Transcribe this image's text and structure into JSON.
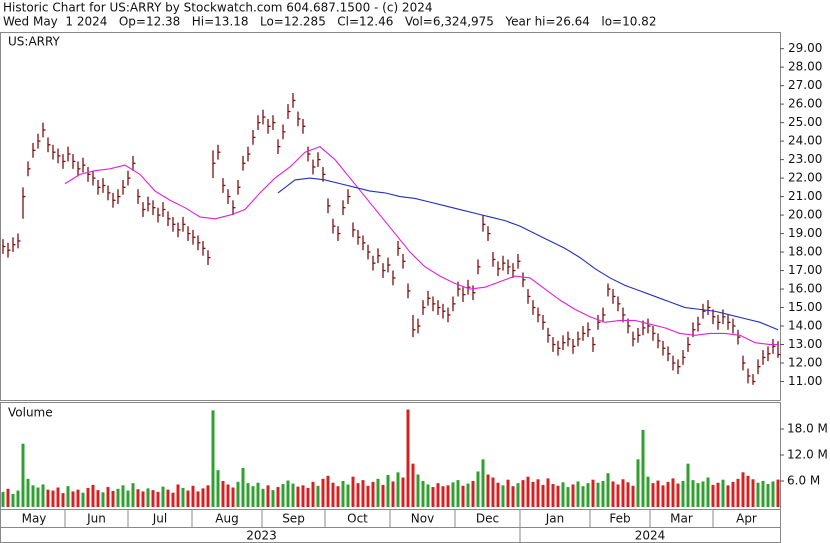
{
  "header": {
    "line1": "Historic Chart for US:ARRY by Stockwatch.com 604.687.1500 - (c) 2024",
    "line2": "Wed May  1 2024   Op=12.38   Hi=13.18   Lo=12.285   Cl=12.46   Vol=6,324,975   Year hi=26.64   lo=10.82"
  },
  "chart_data": [
    {
      "type": "ohlc",
      "label": "US:ARRY",
      "color": "#7a1010",
      "xlim": [
        -0.6,
        155.4
      ],
      "ylim": [
        10,
        29.9
      ],
      "yticks": [
        {
          "value": 11,
          "label": "11.00"
        },
        {
          "value": 12,
          "label": "12.00"
        },
        {
          "value": 13,
          "label": "13.00"
        },
        {
          "value": 14,
          "label": "14.00"
        },
        {
          "value": 15,
          "label": "15.00"
        },
        {
          "value": 16,
          "label": "16.00"
        },
        {
          "value": 17,
          "label": "17.00"
        },
        {
          "value": 18,
          "label": "18.00"
        },
        {
          "value": 19,
          "label": "19.00"
        },
        {
          "value": 20,
          "label": "20.00"
        },
        {
          "value": 21,
          "label": "21.00"
        },
        {
          "value": 22,
          "label": "22.00"
        },
        {
          "value": 23,
          "label": "23.00"
        },
        {
          "value": 24,
          "label": "24.00"
        },
        {
          "value": 25,
          "label": "25.00"
        },
        {
          "value": 26,
          "label": "26.00"
        },
        {
          "value": 27,
          "label": "27.00"
        },
        {
          "value": 28,
          "label": "28.00"
        },
        {
          "value": 29,
          "label": "29.00"
        }
      ],
      "x": [
        0,
        1,
        2,
        3,
        4,
        5,
        6,
        7,
        8,
        9,
        10,
        11,
        12,
        13,
        14,
        15,
        16,
        17,
        18,
        19,
        20,
        21,
        22,
        23,
        24,
        25,
        26,
        27,
        28,
        29,
        30,
        31,
        32,
        33,
        34,
        35,
        36,
        37,
        38,
        39,
        40,
        41,
        42,
        43,
        44,
        45,
        46,
        47,
        48,
        49,
        50,
        51,
        52,
        53,
        54,
        55,
        56,
        57,
        58,
        59,
        60,
        61,
        62,
        63,
        64,
        65,
        66,
        67,
        68,
        69,
        70,
        71,
        72,
        73,
        74,
        75,
        76,
        77,
        78,
        79,
        80,
        81,
        82,
        83,
        84,
        85,
        86,
        87,
        88,
        89,
        90,
        91,
        92,
        93,
        94,
        95,
        96,
        97,
        98,
        99,
        100,
        101,
        102,
        103,
        104,
        105,
        106,
        107,
        108,
        109,
        110,
        111,
        112,
        113,
        114,
        115,
        116,
        117,
        118,
        119,
        120,
        121,
        122,
        123,
        124,
        125,
        126,
        127,
        128,
        129,
        130,
        131,
        132,
        133,
        134,
        135,
        136,
        137,
        138,
        139,
        140,
        141,
        142,
        143,
        144,
        145,
        146,
        147,
        148,
        149,
        150,
        151,
        152,
        153,
        154,
        155
      ],
      "high": [
        18.7,
        18.5,
        18.8,
        19.0,
        21.5,
        22.9,
        23.9,
        24.4,
        25.0,
        24.2,
        23.8,
        23.6,
        23.3,
        23.7,
        23.3,
        22.9,
        23.1,
        22.6,
        22.4,
        21.9,
        22.0,
        21.6,
        21.2,
        21.4,
        21.9,
        22.4,
        23.2,
        21.4,
        20.7,
        21.0,
        20.8,
        20.4,
        20.7,
        20.2,
        19.9,
        19.6,
        19.9,
        19.4,
        19.2,
        18.9,
        18.6,
        18.1,
        23.5,
        23.8,
        22.0,
        21.4,
        20.8,
        21.9,
        23.2,
        23.7,
        24.6,
        25.4,
        25.7,
        25.2,
        25.4,
        24.1,
        24.9,
        26.0,
        26.6,
        25.6,
        25.2,
        23.7,
        23.0,
        23.4,
        22.6,
        20.9,
        19.8,
        19.4,
        20.8,
        21.4,
        19.6,
        19.2,
        18.9,
        18.4,
        17.8,
        18.2,
        17.4,
        17.7,
        17.0,
        18.6,
        17.9,
        16.3,
        14.6,
        14.4,
        15.4,
        15.9,
        15.6,
        15.4,
        15.2,
        15.0,
        15.6,
        16.4,
        16.1,
        16.5,
        16.2,
        17.6,
        20.0,
        19.4,
        18.0,
        17.5,
        17.8,
        17.6,
        17.4,
        17.9,
        16.9,
        16.0,
        15.4,
        15.0,
        14.6,
        13.9,
        13.4,
        13.2,
        13.5,
        13.7,
        13.3,
        13.7,
        14.0,
        14.2,
        13.4,
        14.6,
        15.0,
        16.3,
        16.0,
        15.6,
        15.0,
        14.4,
        13.7,
        13.9,
        14.3,
        14.4,
        14.0,
        13.6,
        13.2,
        12.9,
        12.4,
        12.2,
        12.7,
        13.4,
        14.2,
        14.5,
        15.2,
        15.4,
        14.9,
        14.6,
        14.9,
        14.6,
        14.4,
        13.8,
        12.4,
        11.7,
        11.4,
        12.2,
        12.7,
        12.9,
        13.3,
        13.18
      ],
      "low": [
        17.9,
        17.7,
        18.0,
        18.2,
        19.8,
        22.1,
        23.1,
        23.6,
        24.2,
        23.4,
        23.0,
        22.8,
        22.5,
        22.9,
        22.5,
        22.1,
        22.3,
        21.8,
        21.6,
        21.1,
        21.2,
        20.8,
        20.4,
        20.6,
        21.1,
        21.6,
        22.4,
        20.6,
        19.9,
        20.2,
        20.0,
        19.6,
        19.9,
        19.4,
        19.1,
        18.8,
        19.1,
        18.6,
        18.4,
        18.1,
        17.8,
        17.3,
        22.0,
        23.0,
        21.2,
        20.6,
        20.0,
        21.1,
        22.4,
        22.9,
        23.8,
        24.6,
        24.9,
        24.4,
        24.6,
        23.3,
        24.1,
        25.2,
        25.8,
        24.8,
        24.4,
        22.9,
        22.2,
        22.6,
        21.8,
        20.1,
        19.0,
        18.6,
        20.0,
        20.6,
        18.8,
        18.4,
        18.1,
        17.6,
        17.0,
        17.4,
        16.6,
        16.9,
        16.2,
        17.8,
        17.1,
        15.5,
        13.4,
        13.6,
        14.6,
        15.1,
        14.8,
        14.6,
        14.4,
        14.2,
        14.8,
        15.6,
        15.3,
        15.7,
        15.4,
        16.8,
        19.1,
        18.6,
        17.2,
        16.7,
        17.0,
        16.8,
        16.6,
        17.1,
        16.1,
        15.2,
        14.6,
        14.2,
        13.8,
        13.1,
        12.6,
        12.4,
        12.7,
        12.9,
        12.5,
        12.9,
        13.2,
        13.4,
        12.6,
        13.8,
        14.2,
        15.6,
        15.2,
        14.8,
        14.2,
        13.6,
        12.9,
        13.1,
        13.5,
        13.6,
        13.2,
        12.8,
        12.4,
        12.1,
        11.6,
        11.4,
        11.9,
        12.6,
        13.4,
        13.7,
        14.4,
        14.6,
        14.1,
        13.8,
        14.1,
        13.8,
        13.6,
        13.0,
        11.6,
        10.9,
        10.82,
        11.4,
        11.9,
        12.1,
        12.5,
        12.285
      ],
      "close": [
        18.3,
        18.1,
        18.4,
        18.6,
        21.0,
        22.5,
        23.5,
        24.0,
        24.6,
        23.8,
        23.4,
        23.2,
        22.9,
        23.3,
        22.9,
        22.5,
        22.7,
        22.2,
        22.0,
        21.5,
        21.6,
        21.2,
        20.8,
        21.0,
        21.5,
        22.0,
        22.8,
        21.0,
        20.3,
        20.6,
        20.4,
        20.0,
        20.3,
        19.8,
        19.5,
        19.2,
        19.5,
        19.0,
        18.8,
        18.5,
        18.2,
        17.7,
        22.8,
        23.4,
        21.6,
        21.0,
        20.4,
        21.5,
        22.8,
        23.3,
        24.2,
        25.0,
        25.3,
        24.8,
        25.0,
        23.7,
        24.5,
        25.6,
        26.2,
        25.2,
        24.8,
        23.3,
        22.6,
        23.0,
        22.2,
        20.5,
        19.4,
        19.0,
        20.4,
        21.0,
        19.2,
        18.8,
        18.5,
        18.0,
        17.4,
        17.8,
        17.0,
        17.3,
        16.6,
        18.2,
        17.5,
        15.9,
        13.8,
        14.0,
        15.0,
        15.5,
        15.2,
        15.0,
        14.8,
        14.6,
        15.2,
        16.0,
        15.7,
        16.1,
        15.8,
        17.2,
        19.5,
        19.0,
        17.6,
        17.1,
        17.4,
        17.2,
        17.0,
        17.5,
        16.5,
        15.6,
        15.0,
        14.6,
        14.2,
        13.5,
        13.0,
        12.8,
        13.1,
        13.3,
        12.9,
        13.3,
        13.6,
        13.8,
        13.0,
        14.2,
        14.6,
        16.0,
        15.6,
        15.2,
        14.6,
        14.0,
        13.3,
        13.5,
        13.9,
        14.0,
        13.6,
        13.2,
        12.8,
        12.5,
        12.0,
        11.8,
        12.3,
        13.0,
        13.8,
        14.1,
        14.8,
        15.0,
        14.5,
        14.2,
        14.5,
        14.2,
        14.0,
        13.4,
        12.0,
        11.3,
        11.0,
        11.8,
        12.3,
        12.5,
        12.9,
        12.46
      ],
      "series": [
        {
          "type": "line",
          "color": "#e020d8",
          "x": [
            12.4,
            15.4,
            18.4,
            21.4,
            24.4,
            27.4,
            30.4,
            33.4,
            36.4,
            39.4,
            42.4,
            45.4,
            48.4,
            51.4,
            54.4,
            57.4,
            60.4,
            63.4,
            66.4,
            69.4,
            72.4,
            75.4,
            78.4,
            81.4,
            84.4,
            87.4,
            90.4,
            93.4,
            96.4,
            99.4,
            102.4,
            105.4,
            108.4,
            111.4,
            114.4,
            117.4,
            120.4,
            123.4,
            126.4,
            129.4,
            132.4,
            135.4,
            138.4,
            141.4,
            144.4,
            147.4,
            150.4,
            153.4,
            155
          ],
          "values": [
            21.7,
            22.2,
            22.4,
            22.5,
            22.7,
            22.2,
            21.3,
            20.8,
            20.4,
            19.9,
            19.8,
            20.0,
            20.3,
            21.2,
            22.0,
            22.6,
            23.4,
            23.7,
            23.0,
            22.0,
            21.0,
            20.0,
            19.0,
            18.0,
            17.2,
            16.7,
            16.3,
            16.0,
            16.1,
            16.4,
            16.7,
            16.6,
            16.0,
            15.4,
            14.9,
            14.5,
            14.2,
            14.3,
            14.3,
            14.1,
            13.9,
            13.6,
            13.5,
            13.6,
            13.6,
            13.5,
            13.1,
            13.0,
            13.0
          ]
        },
        {
          "type": "line",
          "color": "#2030c0",
          "x": [
            55,
            58.4,
            61.4,
            64.4,
            67.4,
            70.4,
            73.4,
            76.4,
            79.4,
            82.4,
            85.4,
            88.4,
            91.4,
            94.4,
            97.4,
            100.4,
            103.4,
            106.4,
            109.4,
            112.4,
            115.4,
            118.4,
            121.4,
            124.4,
            127.4,
            130.4,
            133.4,
            136.4,
            139.4,
            142.4,
            145.4,
            148.4,
            151.4,
            155
          ],
          "values": [
            21.2,
            21.9,
            22.0,
            21.9,
            21.7,
            21.5,
            21.3,
            21.2,
            21.0,
            20.9,
            20.7,
            20.5,
            20.3,
            20.1,
            19.9,
            19.7,
            19.4,
            19.0,
            18.6,
            18.2,
            17.7,
            17.1,
            16.6,
            16.2,
            15.9,
            15.6,
            15.3,
            15.0,
            14.9,
            14.8,
            14.6,
            14.4,
            14.2,
            13.8
          ]
        }
      ]
    },
    {
      "type": "bar",
      "label": "Volume",
      "up_color": "#2ea02e",
      "down_color": "#d42020",
      "ylim": [
        0,
        24
      ],
      "yticks": [
        {
          "value": 6,
          "label": "6.0 M"
        },
        {
          "value": 12,
          "label": "12.0 M"
        },
        {
          "value": 18,
          "label": "18.0 M"
        }
      ],
      "values": [
        3.5,
        4.2,
        3.0,
        3.8,
        14.6,
        6.5,
        5.0,
        4.5,
        5.2,
        4.0,
        3.8,
        4.5,
        3.2,
        4.8,
        3.6,
        4.0,
        3.3,
        4.4,
        5.1,
        3.9,
        3.4,
        4.6,
        3.7,
        4.2,
        5.0,
        3.8,
        5.5,
        4.1,
        3.6,
        4.3,
        3.9,
        3.5,
        4.7,
        4.0,
        3.3,
        5.2,
        4.4,
        3.8,
        4.9,
        3.6,
        4.3,
        5.0,
        22.3,
        8.5,
        6.0,
        5.2,
        4.5,
        5.8,
        9.0,
        5.5,
        4.8,
        5.6,
        4.2,
        5.0,
        3.9,
        4.6,
        5.3,
        6.1,
        5.4,
        4.7,
        5.0,
        4.4,
        5.8,
        4.9,
        6.5,
        7.2,
        5.6,
        4.8,
        6.0,
        5.2,
        7.0,
        5.5,
        6.2,
        4.9,
        5.8,
        6.5,
        5.1,
        7.4,
        5.9,
        8.0,
        6.8,
        22.5,
        10.0,
        7.5,
        6.0,
        5.2,
        4.6,
        5.5,
        4.8,
        5.0,
        5.7,
        6.2,
        4.9,
        5.4,
        6.0,
        8.2,
        11.0,
        7.5,
        6.8,
        5.6,
        5.0,
        6.3,
        4.8,
        5.5,
        6.2,
        7.0,
        5.8,
        6.4,
        5.1,
        6.6,
        5.3,
        4.9,
        5.7,
        4.6,
        5.2,
        5.9,
        4.8,
        5.5,
        6.3,
        5.6,
        6.0,
        7.8,
        5.9,
        5.2,
        6.4,
        5.7,
        4.9,
        11.0,
        17.8,
        7.0,
        5.5,
        6.1,
        5.0,
        5.8,
        6.6,
        5.4,
        6.0,
        10.0,
        6.2,
        5.5,
        5.9,
        6.8,
        5.1,
        5.6,
        6.3,
        5.0,
        5.8,
        6.5,
        8.0,
        7.2,
        6.4,
        5.6,
        6.0,
        5.3,
        5.9,
        6.324975
      ],
      "xticks": [
        {
          "value": 0,
          "label": "May"
        },
        {
          "value": 12.4,
          "label": "Jun"
        },
        {
          "value": 25,
          "label": "Jul"
        },
        {
          "value": 37.8,
          "label": "Aug"
        },
        {
          "value": 51.8,
          "label": "Sep"
        },
        {
          "value": 64.4,
          "label": "Oct"
        },
        {
          "value": 77.4,
          "label": "Nov"
        },
        {
          "value": 90.4,
          "label": "Dec"
        },
        {
          "value": 103.4,
          "label": "Jan"
        },
        {
          "value": 117.4,
          "label": "Feb"
        },
        {
          "value": 129.4,
          "label": "Mar"
        },
        {
          "value": 142,
          "label": "Apr"
        }
      ],
      "year_ticks": [
        {
          "value": 0,
          "label": "2023"
        },
        {
          "value": 103.4,
          "label": "2024"
        }
      ]
    }
  ]
}
